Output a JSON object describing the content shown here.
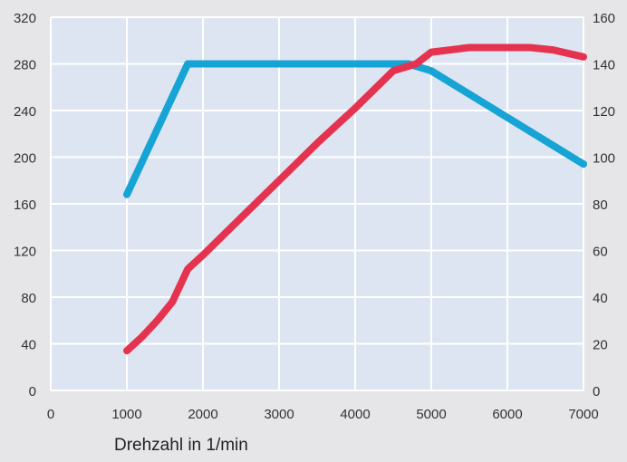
{
  "chart_data": {
    "type": "line",
    "xlabel": "Drehzahl in 1/min",
    "x_ticks": [
      0,
      1000,
      2000,
      3000,
      4000,
      5000,
      6000,
      7000
    ],
    "xlim": [
      0,
      7000
    ],
    "y_left_ticks": [
      0,
      40,
      80,
      120,
      160,
      200,
      240,
      280,
      320
    ],
    "ylim_left": [
      0,
      320
    ],
    "y_right_ticks": [
      0,
      20,
      40,
      60,
      80,
      100,
      120,
      140,
      160
    ],
    "ylim_right": [
      0,
      160
    ],
    "grid": "on",
    "legend": "none",
    "colors": {
      "background": "#e6e6e8",
      "plot": "#dce5f1",
      "grid": "#ffffff"
    },
    "series": [
      {
        "axis": "left",
        "color": "#15a4d4",
        "x": [
          1000,
          1800,
          4700,
          5000,
          7000
        ],
        "y": [
          168,
          280,
          280,
          274,
          194
        ]
      },
      {
        "axis": "right",
        "color": "#e5334f",
        "x": [
          1000,
          1200,
          1400,
          1600,
          1800,
          2000,
          2500,
          3000,
          3500,
          4000,
          4500,
          4800,
          5000,
          5500,
          6000,
          6300,
          6600,
          7000
        ],
        "y": [
          17,
          23,
          30,
          38,
          52,
          58,
          74,
          90,
          106,
          121,
          137,
          140,
          145,
          147,
          147,
          147,
          146,
          143
        ]
      }
    ]
  }
}
